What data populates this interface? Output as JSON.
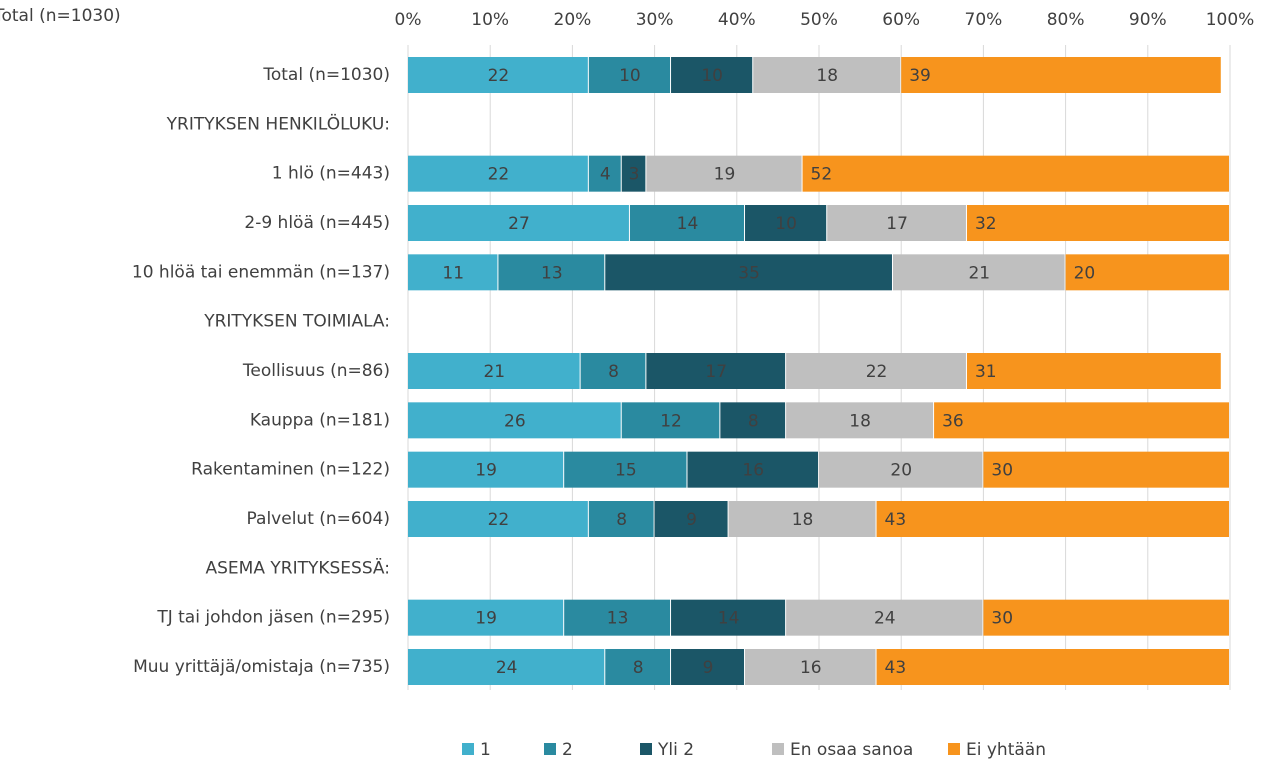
{
  "chart_data": {
    "type": "stacked-bar-horizontal",
    "title": "Total (n=1030)",
    "categories": [
      "Total (n=1030)",
      "YRITYKSEN HENKILÖLUKU:",
      "1 hlö (n=443)",
      "2-9 hlöä (n=445)",
      "10 hlöä tai enemmän (n=137)",
      "YRITYKSEN TOIMIALA:",
      "Teollisuus (n=86)",
      "Kauppa  (n=181)",
      "Rakentaminen (n=122)",
      "Palvelut  (n=604)",
      "ASEMA YRITYKSESSÄ:",
      "TJ tai johdon jäsen (n=295)",
      "Muu yrittäjä/omistaja (n=735)"
    ],
    "series": [
      {
        "name": "1",
        "color": "#41b0cc",
        "values": [
          22,
          null,
          22,
          27,
          11,
          null,
          21,
          26,
          19,
          22,
          null,
          19,
          24
        ]
      },
      {
        "name": "2",
        "color": "#2a8aa0",
        "values": [
          10,
          null,
          4,
          14,
          13,
          null,
          8,
          12,
          15,
          8,
          null,
          13,
          8
        ]
      },
      {
        "name": "Yli 2",
        "color": "#1b5667",
        "values": [
          10,
          null,
          3,
          10,
          35,
          null,
          17,
          8,
          16,
          9,
          null,
          14,
          9
        ]
      },
      {
        "name": "En osaa sanoa",
        "color": "#bfbfbf",
        "values": [
          18,
          null,
          19,
          17,
          21,
          null,
          22,
          18,
          20,
          18,
          null,
          24,
          16
        ]
      },
      {
        "name": "Ei yhtään",
        "color": "#f7941d",
        "values": [
          39,
          null,
          52,
          32,
          20,
          null,
          31,
          36,
          30,
          43,
          null,
          30,
          43
        ]
      }
    ],
    "xlim": [
      0,
      100
    ],
    "xticks": [
      {
        "value": 0,
        "label": "0%"
      },
      {
        "value": 10,
        "label": "10%"
      },
      {
        "value": 20,
        "label": "20%"
      },
      {
        "value": 30,
        "label": "30%"
      },
      {
        "value": 40,
        "label": "40%"
      },
      {
        "value": 50,
        "label": "50%"
      },
      {
        "value": 60,
        "label": "60%"
      },
      {
        "value": 70,
        "label": "70%"
      },
      {
        "value": 80,
        "label": "80%"
      },
      {
        "value": 90,
        "label": "90%"
      },
      {
        "value": 100,
        "label": "100%"
      }
    ],
    "grid": true,
    "legend": "bottom"
  }
}
